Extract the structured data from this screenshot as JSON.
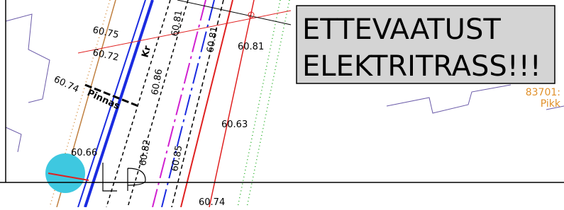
{
  "labels": [
    "60.75",
    "60.81",
    "Kr",
    "60.81",
    "60.72",
    "60.86",
    "60.74",
    "Pinnas",
    "60.63",
    "60.66",
    "60.82",
    "60.85",
    "60.74",
    "60.81"
  ],
  "warning": {
    "line1": "ETTEVAATUST",
    "line2": "ELEKTRITRASS!!!"
  },
  "parcel": {
    "id": "83701:",
    "street": "Pikk"
  }
}
